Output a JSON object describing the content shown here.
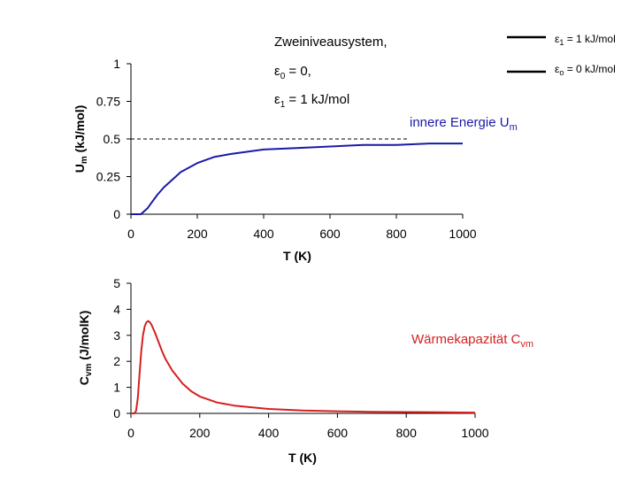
{
  "text": {
    "title": "Zweiniveausystem,",
    "eps0_prefix": "ε",
    "eps0_sub": "0",
    "eps0_rest": " = 0,",
    "eps1_prefix": "ε",
    "eps1_sub": "1",
    "eps1_rest": " = 1 kJ/mol"
  },
  "legend": {
    "top": {
      "prefix": "ε",
      "sub": "1",
      "rest": " = 1 kJ/mol"
    },
    "bottom": {
      "prefix": "ε",
      "sub": "o",
      "rest": " = 0 kJ/mol"
    }
  },
  "colors": {
    "blue": "#1a1aa8",
    "red": "#d62020"
  },
  "chart_data": [
    {
      "type": "line",
      "title": "",
      "annotation_main": "innere Energie U",
      "annotation_sub": "m",
      "xlabel": "T (K)",
      "ylabel": "Um (kJ/mol)",
      "ylabel_main": "U",
      "ylabel_sub": "m",
      "ylabel_rest": " (kJ/mol)",
      "xlim": [
        0,
        1000
      ],
      "ylim": [
        0,
        1
      ],
      "x_ticks": [
        "0",
        "200",
        "400",
        "600",
        "800",
        "1000"
      ],
      "y_ticks": [
        "0",
        "0.25",
        "0.5",
        "0.75",
        "1"
      ],
      "reference_line": 0.5,
      "series": [
        {
          "name": "U_m",
          "x": [
            0,
            20,
            30,
            40,
            50,
            60,
            80,
            100,
            120,
            150,
            200,
            250,
            300,
            400,
            500,
            600,
            700,
            800,
            900,
            1000
          ],
          "y": [
            0,
            0.0,
            0.0,
            0.02,
            0.04,
            0.07,
            0.13,
            0.18,
            0.22,
            0.28,
            0.34,
            0.38,
            0.4,
            0.43,
            0.44,
            0.45,
            0.46,
            0.46,
            0.47,
            0.47
          ]
        }
      ]
    },
    {
      "type": "line",
      "title": "",
      "annotation_main": "Wärmekapazität C",
      "annotation_sub": "vm",
      "xlabel": "T (K)",
      "ylabel": "Cvm (J/molK)",
      "ylabel_main": "C",
      "ylabel_sub": "vm",
      "ylabel_rest": " (J/molK)",
      "xlim": [
        0,
        1000
      ],
      "ylim": [
        0,
        5
      ],
      "x_ticks": [
        "0",
        "200",
        "400",
        "600",
        "800",
        "1000"
      ],
      "y_ticks": [
        "0",
        "1",
        "2",
        "3",
        "4",
        "5"
      ],
      "series": [
        {
          "name": "C_vm",
          "x": [
            0,
            10,
            15,
            20,
            25,
            30,
            35,
            40,
            45,
            50,
            55,
            60,
            70,
            80,
            90,
            100,
            120,
            150,
            175,
            200,
            250,
            300,
            400,
            500,
            600,
            700,
            800,
            900,
            1000
          ],
          "y": [
            0,
            0.0,
            0.1,
            0.6,
            1.5,
            2.4,
            3.0,
            3.35,
            3.5,
            3.55,
            3.5,
            3.4,
            3.1,
            2.75,
            2.4,
            2.1,
            1.65,
            1.15,
            0.85,
            0.65,
            0.42,
            0.3,
            0.17,
            0.11,
            0.08,
            0.06,
            0.05,
            0.04,
            0.03
          ]
        }
      ]
    }
  ]
}
